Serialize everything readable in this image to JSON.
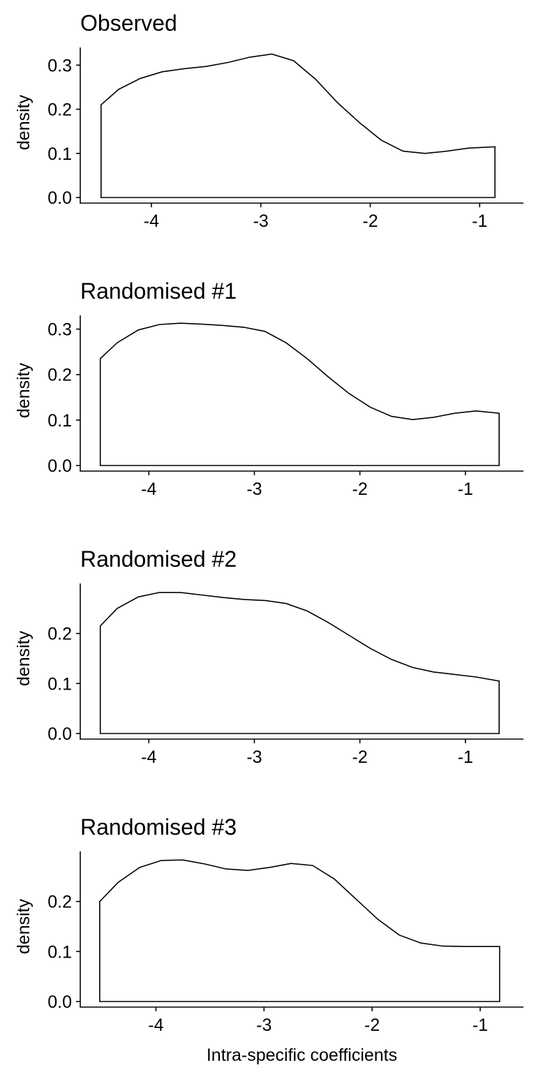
{
  "chart_data": [
    {
      "type": "area",
      "title": "Observed",
      "xlabel": "",
      "ylabel": "density",
      "xlim": [
        -4.65,
        -0.6
      ],
      "ylim": [
        0,
        0.34
      ],
      "x_ticks": [
        -4,
        -3,
        -2,
        -1
      ],
      "y_ticks": [
        0.0,
        0.1,
        0.2,
        0.3
      ],
      "x_tick_labels": [
        "-4",
        "-3",
        "-2",
        "-1"
      ],
      "y_tick_labels": [
        "0.0",
        "0.1",
        "0.2",
        "0.3"
      ],
      "grid": false,
      "x": [
        -4.46,
        -4.3,
        -4.1,
        -3.9,
        -3.7,
        -3.5,
        -3.3,
        -3.1,
        -2.9,
        -2.7,
        -2.5,
        -2.3,
        -2.1,
        -1.9,
        -1.7,
        -1.5,
        -1.3,
        -1.1,
        -0.86
      ],
      "y": [
        0.21,
        0.245,
        0.27,
        0.285,
        0.292,
        0.297,
        0.306,
        0.318,
        0.325,
        0.31,
        0.268,
        0.215,
        0.17,
        0.13,
        0.105,
        0.1,
        0.105,
        0.112,
        0.115
      ]
    },
    {
      "type": "area",
      "title": "Randomised #1",
      "xlabel": "",
      "ylabel": "density",
      "xlim": [
        -4.65,
        -0.45
      ],
      "ylim": [
        0,
        0.33
      ],
      "x_ticks": [
        -4,
        -3,
        -2,
        -1
      ],
      "y_ticks": [
        0.0,
        0.1,
        0.2,
        0.3
      ],
      "x_tick_labels": [
        "-4",
        "-3",
        "-2",
        "-1"
      ],
      "y_tick_labels": [
        "0.0",
        "0.1",
        "0.2",
        "0.3"
      ],
      "grid": false,
      "x": [
        -4.46,
        -4.3,
        -4.1,
        -3.9,
        -3.7,
        -3.5,
        -3.3,
        -3.1,
        -2.9,
        -2.7,
        -2.5,
        -2.3,
        -2.1,
        -1.9,
        -1.7,
        -1.5,
        -1.3,
        -1.1,
        -0.9,
        -0.68
      ],
      "y": [
        0.235,
        0.27,
        0.298,
        0.31,
        0.313,
        0.311,
        0.308,
        0.304,
        0.295,
        0.27,
        0.235,
        0.195,
        0.158,
        0.128,
        0.108,
        0.101,
        0.106,
        0.115,
        0.12,
        0.115
      ]
    },
    {
      "type": "area",
      "title": "Randomised #2",
      "xlabel": "",
      "ylabel": "density",
      "xlim": [
        -4.65,
        -0.45
      ],
      "ylim": [
        0,
        0.3
      ],
      "x_ticks": [
        -4,
        -3,
        -2,
        -1
      ],
      "y_ticks": [
        0.0,
        0.1,
        0.2
      ],
      "x_tick_labels": [
        "-4",
        "-3",
        "-2",
        "-1"
      ],
      "y_tick_labels": [
        "0.0",
        "0.1",
        "0.2"
      ],
      "grid": false,
      "x": [
        -4.46,
        -4.3,
        -4.1,
        -3.9,
        -3.7,
        -3.5,
        -3.3,
        -3.1,
        -2.9,
        -2.7,
        -2.5,
        -2.3,
        -2.1,
        -1.9,
        -1.7,
        -1.5,
        -1.3,
        -1.1,
        -0.9,
        -0.68
      ],
      "y": [
        0.215,
        0.25,
        0.273,
        0.282,
        0.282,
        0.277,
        0.272,
        0.268,
        0.266,
        0.26,
        0.245,
        0.222,
        0.196,
        0.17,
        0.148,
        0.132,
        0.123,
        0.118,
        0.113,
        0.105
      ]
    },
    {
      "type": "area",
      "title": "Randomised #3",
      "xlabel": "Intra-specific coefficients",
      "ylabel": "density",
      "xlim": [
        -4.7,
        -0.6
      ],
      "ylim": [
        0,
        0.3
      ],
      "x_ticks": [
        -4,
        -3,
        -2,
        -1
      ],
      "y_ticks": [
        0.0,
        0.1,
        0.2
      ],
      "x_tick_labels": [
        "-4",
        "-3",
        "-2",
        "-1"
      ],
      "y_tick_labels": [
        "0.0",
        "0.1",
        "0.2"
      ],
      "grid": false,
      "x": [
        -4.52,
        -4.35,
        -4.15,
        -3.95,
        -3.75,
        -3.55,
        -3.35,
        -3.15,
        -2.95,
        -2.75,
        -2.55,
        -2.35,
        -2.15,
        -1.95,
        -1.75,
        -1.55,
        -1.35,
        -1.15,
        -0.82
      ],
      "y": [
        0.2,
        0.238,
        0.268,
        0.282,
        0.283,
        0.275,
        0.265,
        0.262,
        0.268,
        0.276,
        0.272,
        0.245,
        0.205,
        0.165,
        0.133,
        0.117,
        0.111,
        0.11,
        0.11
      ]
    }
  ]
}
